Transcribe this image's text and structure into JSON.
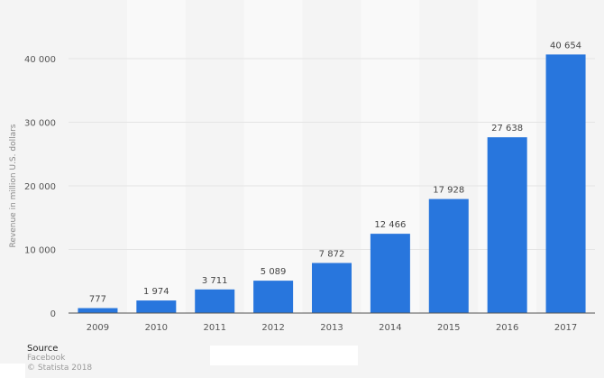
{
  "chart_data": {
    "type": "bar",
    "title": "",
    "xlabel": "",
    "ylabel": "Revenue in million U.S. dollars",
    "categories": [
      "2009",
      "2010",
      "2011",
      "2012",
      "2013",
      "2014",
      "2015",
      "2016",
      "2017"
    ],
    "values": [
      777,
      1974,
      3711,
      5089,
      7872,
      12466,
      17928,
      27638,
      40654
    ],
    "value_labels": [
      "777",
      "1 974",
      "3 711",
      "5 089",
      "7 872",
      "12 466",
      "17 928",
      "27 638",
      "40 654"
    ],
    "ylim": [
      0,
      42000
    ],
    "yticks": [
      0,
      10000,
      20000,
      30000,
      40000
    ],
    "ytick_labels": [
      "0",
      "10 000",
      "20 000",
      "30 000",
      "40 000"
    ],
    "grid": true,
    "bar_color": "#2876dd",
    "legend": null
  },
  "source": {
    "heading": "Source",
    "name": "Facebook",
    "copyright": "© Statista 2018"
  }
}
